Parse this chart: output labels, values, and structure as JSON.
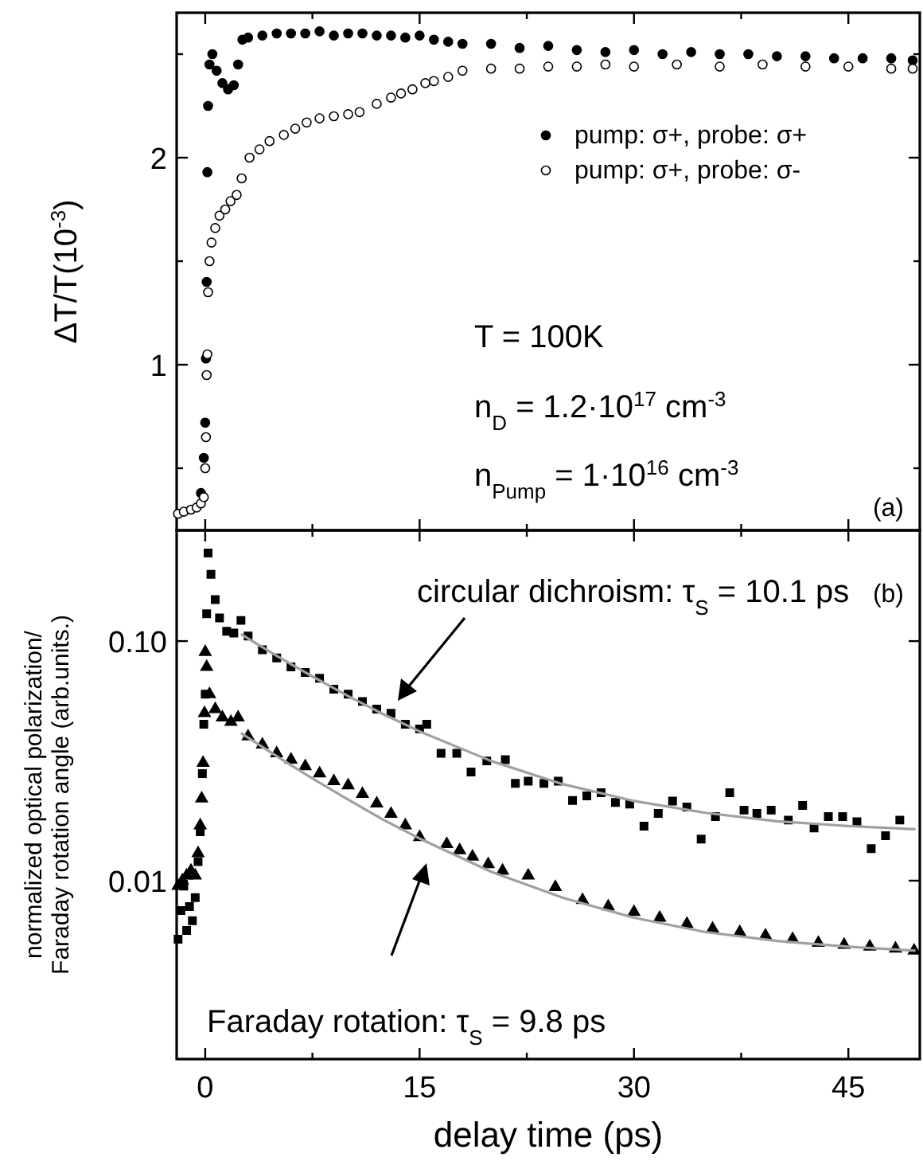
{
  "chart_data": [
    {
      "type": "scatter",
      "ylabel": "ΔT/T(10$^{-3}$)",
      "xlim": [
        -2,
        50
      ],
      "ylim": [
        0.2,
        2.7
      ],
      "xticks": [
        0,
        {
          "value": 7.5,
          "label": null
        },
        15,
        {
          "value": 22.5,
          "label": null
        },
        30,
        {
          "value": 37.5,
          "label": null
        },
        45
      ],
      "yticks": [
        {
          "value": 0.5,
          "label": null
        },
        1,
        {
          "value": 1.5,
          "label": null
        },
        2,
        {
          "value": 2.5,
          "label": null
        }
      ],
      "tick_labels": "y",
      "legend": "top right",
      "annotations": [
        "T = 100K",
        "n$_{D}$ = 1.2·10$^{17}$ cm$^{-3}$",
        "n$_{Pump}$ = 1·10$^{16}$ cm$^{-3}$",
        "(a)"
      ],
      "series": [
        {
          "name": "pump: σ+, probe: σ+",
          "color": "#000000",
          "marker": "circle",
          "x": [
            -0.3,
            -0.1,
            0,
            0.05,
            0.1,
            0.15,
            0.2,
            0.3,
            0.5,
            0.8,
            1.2,
            1.6,
            2,
            2.3,
            2.6,
            3,
            4,
            5,
            6,
            7,
            8,
            9,
            10,
            11,
            12,
            13,
            14,
            15,
            16,
            17,
            18,
            20,
            22,
            24,
            26,
            28,
            30,
            32,
            34,
            36,
            38,
            40,
            42,
            44,
            46,
            48,
            49.5
          ],
          "values": [
            0.38,
            0.55,
            0.72,
            1.03,
            1.4,
            1.93,
            2.25,
            2.45,
            2.5,
            2.42,
            2.36,
            2.33,
            2.35,
            2.45,
            2.57,
            2.58,
            2.59,
            2.6,
            2.6,
            2.6,
            2.61,
            2.59,
            2.6,
            2.6,
            2.59,
            2.59,
            2.58,
            2.59,
            2.57,
            2.56,
            2.55,
            2.55,
            2.53,
            2.54,
            2.52,
            2.51,
            2.52,
            2.5,
            2.51,
            2.5,
            2.5,
            2.49,
            2.49,
            2.48,
            2.48,
            2.48,
            2.47
          ]
        },
        {
          "name": "pump: σ+, probe: σ-",
          "color": "#ffffff",
          "marker": "circle",
          "x": [
            -1.9,
            -1.5,
            -1,
            -0.6,
            -0.3,
            -0.1,
            0,
            0.05,
            0.1,
            0.15,
            0.2,
            0.3,
            0.44,
            0.7,
            1,
            1.4,
            1.77,
            2.2,
            2.55,
            3.1,
            3.8,
            4.5,
            5.5,
            6.3,
            7.1,
            8,
            9,
            10,
            10.8,
            12,
            13,
            13.7,
            14.5,
            15.4,
            16,
            17,
            18,
            20,
            22,
            24,
            26,
            28,
            30,
            33,
            36,
            39,
            42,
            45,
            48,
            49.5
          ],
          "values": [
            0.28,
            0.29,
            0.3,
            0.31,
            0.33,
            0.36,
            0.5,
            0.65,
            0.95,
            1.05,
            1.35,
            1.5,
            1.59,
            1.66,
            1.72,
            1.75,
            1.79,
            1.82,
            1.9,
            2.0,
            2.04,
            2.08,
            2.11,
            2.14,
            2.17,
            2.19,
            2.2,
            2.21,
            2.22,
            2.26,
            2.29,
            2.31,
            2.33,
            2.36,
            2.37,
            2.39,
            2.42,
            2.43,
            2.43,
            2.44,
            2.44,
            2.45,
            2.44,
            2.45,
            2.44,
            2.45,
            2.44,
            2.44,
            2.43,
            2.43
          ]
        }
      ]
    },
    {
      "type": "scatter",
      "xlabel": "delay  time (ps)",
      "ylabel": "normalized optical polarization/\nFaraday rotation angle (arb.units.)",
      "xlim": [
        -2,
        50
      ],
      "ylim": [
        0.0018,
        0.29
      ],
      "log": true,
      "xticks": [
        0,
        {
          "value": 7.5,
          "label": null
        },
        15,
        {
          "value": 22.5,
          "label": null
        },
        30,
        {
          "value": 37.5,
          "label": null
        },
        45
      ],
      "yticks": [
        0.01,
        {
          "value": 0.1,
          "label": "0.10"
        }
      ],
      "annotations": [
        "circular dichroism: τ$_{S}$ = 10.1 ps",
        "Faraday rotation: τ$_{S}$ = 9.8 ps",
        "(b)"
      ],
      "series": [
        {
          "color": "#000000",
          "marker": "square",
          "x": [
            -1.9,
            -1.7,
            -1.5,
            -1.3,
            -1.1,
            -0.9,
            -0.7,
            -0.5,
            -0.35,
            -0.2,
            -0.1,
            0,
            0.1,
            0.2,
            0.4,
            0.7,
            1,
            1.5,
            2,
            2.5,
            3,
            4,
            5,
            6,
            7,
            8,
            9,
            10,
            11,
            12,
            13,
            14,
            15,
            15.5,
            16.5,
            17.6,
            18.6,
            19.7,
            21,
            21.7,
            22.6,
            23.7,
            24.7,
            25.7,
            26.7,
            27.7,
            28.7,
            29.7,
            30.7,
            31.7,
            32.7,
            33.7,
            34.7,
            35.7,
            36.7,
            37.7,
            38.6,
            39.6,
            40.8,
            41.8,
            42.6,
            43.6,
            44.6,
            45.6,
            46.6,
            47.6,
            48.6
          ],
          "values": [
            0.0057,
            0.0075,
            0.0095,
            0.0062,
            0.0078,
            0.0068,
            0.0085,
            0.012,
            0.016,
            0.028,
            0.045,
            0.06,
            0.13,
            0.233,
            0.19,
            0.149,
            0.125,
            0.11,
            0.108,
            0.122,
            0.105,
            0.092,
            0.085,
            0.078,
            0.074,
            0.07,
            0.063,
            0.06,
            0.056,
            0.052,
            0.05,
            0.045,
            0.043,
            0.045,
            0.034,
            0.034,
            0.0284,
            0.0316,
            0.032,
            0.0255,
            0.026,
            0.0255,
            0.026,
            0.0216,
            0.0226,
            0.0233,
            0.0212,
            0.0209,
            0.0169,
            0.0191,
            0.0215,
            0.0203,
            0.0149,
            0.0185,
            0.0233,
            0.0197,
            0.0191,
            0.0197,
            0.0179,
            0.0206,
            0.0166,
            0.0185,
            0.0185,
            0.0176,
            0.0136,
            0.0154,
            0.0179
          ]
        },
        {
          "color": "#000000",
          "marker": "triangle",
          "x": [
            -1.9,
            -1.6,
            -1.3,
            -1,
            -0.7,
            -0.5,
            -0.35,
            -0.25,
            -0.15,
            -0.05,
            0,
            0.1,
            0.3,
            0.7,
            1.2,
            1.8,
            2.3,
            3,
            4,
            5,
            6,
            7,
            8,
            9,
            10,
            11,
            12,
            13,
            14,
            15,
            16.9,
            17.8,
            18.7,
            19.8,
            20.8,
            22.6,
            24.5,
            26.4,
            28.2,
            30,
            31.8,
            33.7,
            35.5,
            37.4,
            39.2,
            41.1,
            42.9,
            44.7,
            46.5,
            48.3,
            49.6
          ],
          "values": [
            0.0095,
            0.01,
            0.0105,
            0.011,
            0.0105,
            0.013,
            0.017,
            0.022,
            0.031,
            0.05,
            0.09,
            0.078,
            0.06,
            0.052,
            0.048,
            0.046,
            0.048,
            0.04,
            0.037,
            0.034,
            0.032,
            0.03,
            0.028,
            0.026,
            0.025,
            0.023,
            0.021,
            0.019,
            0.017,
            0.0152,
            0.0142,
            0.0134,
            0.0126,
            0.0117,
            0.011,
            0.0105,
            0.0094,
            0.0083,
            0.0078,
            0.0074,
            0.007,
            0.0066,
            0.0063,
            0.0061,
            0.0059,
            0.0057,
            0.0055,
            0.0054,
            0.0053,
            0.0052,
            0.0051
          ]
        },
        {
          "type": "line",
          "color": "#a0a0a0",
          "marker": "none",
          "x": [
            2.5,
            5,
            7.5,
            10,
            12.5,
            15,
            20,
            25,
            30,
            35,
            40,
            45,
            49.7
          ],
          "values": [
            0.107,
            0.0868,
            0.0712,
            0.059,
            0.0494,
            0.042,
            0.0316,
            0.0253,
            0.0215,
            0.0192,
            0.0177,
            0.0169,
            0.0164
          ]
        },
        {
          "type": "line",
          "color": "#a0a0a0",
          "marker": "none",
          "x": [
            2.5,
            5,
            7.5,
            10,
            12.5,
            15,
            20,
            25,
            30,
            35,
            40,
            45,
            49.7
          ],
          "values": [
            0.0413,
            0.0331,
            0.0267,
            0.0218,
            0.0179,
            0.015,
            0.0109,
            0.0085,
            0.007,
            0.0061,
            0.0056,
            0.0053,
            0.0051
          ]
        }
      ]
    }
  ]
}
